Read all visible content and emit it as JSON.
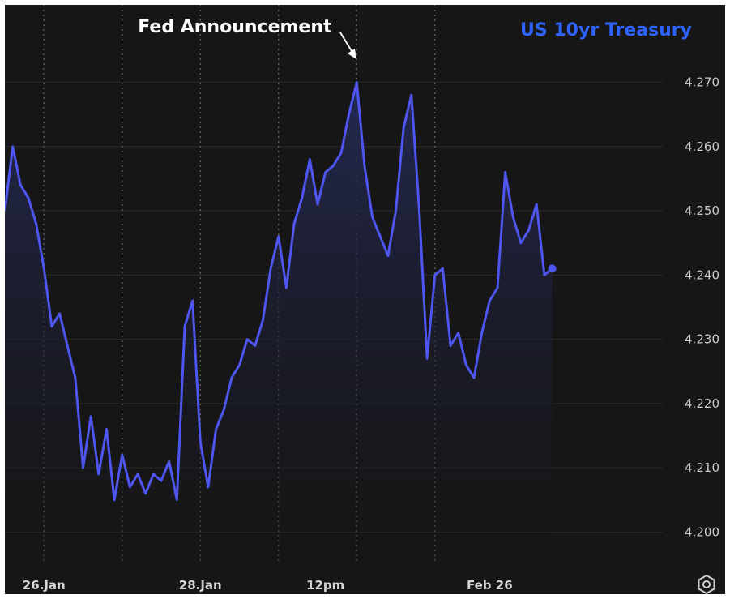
{
  "chart_data": {
    "type": "area",
    "title": "",
    "series": [
      {
        "name": "US 10yr Treasury",
        "x": [
          0,
          2,
          4,
          6,
          8,
          10,
          12,
          14,
          16,
          18,
          20,
          22,
          24,
          26,
          28,
          30,
          32,
          34,
          36,
          38,
          40,
          42,
          44,
          46,
          48,
          50,
          52,
          54,
          56,
          58,
          60,
          62,
          64,
          66,
          68,
          70,
          72,
          74,
          76,
          78,
          80,
          82,
          84,
          86,
          88,
          90,
          92,
          94,
          96,
          98,
          100,
          102,
          104,
          106,
          108,
          110,
          112,
          114,
          116,
          118,
          120,
          122,
          124,
          126,
          128,
          130,
          132,
          134,
          136,
          138,
          140
        ],
        "values": [
          4.25,
          4.26,
          4.254,
          4.252,
          4.248,
          4.241,
          4.232,
          4.234,
          4.229,
          4.224,
          4.21,
          4.218,
          4.209,
          4.216,
          4.205,
          4.212,
          4.207,
          4.209,
          4.206,
          4.209,
          4.208,
          4.211,
          4.205,
          4.232,
          4.236,
          4.214,
          4.207,
          4.216,
          4.219,
          4.224,
          4.226,
          4.23,
          4.229,
          4.233,
          4.241,
          4.246,
          4.238,
          4.248,
          4.252,
          4.258,
          4.251,
          4.256,
          4.257,
          4.259,
          4.265,
          4.27,
          4.257,
          4.249,
          4.246,
          4.243,
          4.25,
          4.263,
          4.268,
          4.25,
          4.227,
          4.24,
          4.241,
          4.229,
          4.231,
          4.226,
          4.224,
          4.231,
          4.236,
          4.238,
          4.256,
          4.249,
          4.245,
          4.247,
          4.251,
          4.24,
          4.241
        ]
      }
    ],
    "x_tick_labels": [
      {
        "x": 10,
        "label": "26.Jan"
      },
      {
        "x": 50,
        "label": "28.Jan"
      },
      {
        "x": 82,
        "label": "12pm"
      },
      {
        "x": 124,
        "label": "Feb 26"
      }
    ],
    "y_ticks": [
      4.2,
      4.21,
      4.22,
      4.23,
      4.24,
      4.25,
      4.26,
      4.27
    ],
    "y_tick_labels": [
      "4.200",
      "4.210",
      "4.220",
      "4.230",
      "4.240",
      "4.250",
      "4.260",
      "4.270"
    ],
    "ylim": [
      4.195,
      4.277
    ],
    "xlim": [
      0,
      143
    ],
    "vertical_gridlines_x": [
      10,
      30,
      50,
      70,
      90,
      110
    ],
    "annotation": {
      "text": "Fed Announcement",
      "x": 92,
      "y": 4.271
    },
    "grid": true,
    "legend": "top-right",
    "line_color": "#4f55f0",
    "fill_color": "#1b1f3d",
    "background": "#161616"
  },
  "ui": {
    "settings_icon": "settings-icon"
  }
}
